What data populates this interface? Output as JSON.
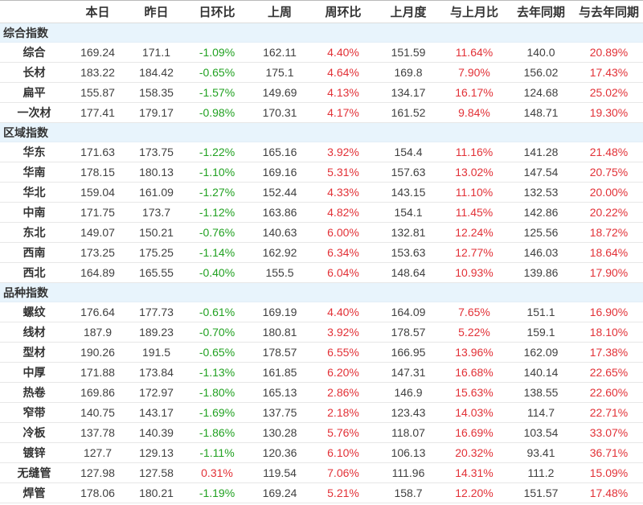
{
  "colors": {
    "up_red": "#e23137",
    "down_green": "#21a121",
    "section_background": "#e8f4fc",
    "header_text": "#333333",
    "value_text": "#404040"
  },
  "chart_data": {
    "type": "table",
    "columns": [
      "",
      "本日",
      "昨日",
      "日环比",
      "上周",
      "周环比",
      "上月度",
      "与上月比",
      "去年同期",
      "与去年同期"
    ],
    "percent_column_indexes": [
      2,
      4,
      6,
      8
    ],
    "groups": [
      {
        "name": "综合指数",
        "rows": [
          {
            "label": "综合",
            "values": [
              "169.24",
              "171.1",
              "-1.09%",
              "162.11",
              "4.40%",
              "151.59",
              "11.64%",
              "140.0",
              "20.89%"
            ]
          },
          {
            "label": "长材",
            "values": [
              "183.22",
              "184.42",
              "-0.65%",
              "175.1",
              "4.64%",
              "169.8",
              "7.90%",
              "156.02",
              "17.43%"
            ]
          },
          {
            "label": "扁平",
            "values": [
              "155.87",
              "158.35",
              "-1.57%",
              "149.69",
              "4.13%",
              "134.17",
              "16.17%",
              "124.68",
              "25.02%"
            ]
          },
          {
            "label": "一次材",
            "values": [
              "177.41",
              "179.17",
              "-0.98%",
              "170.31",
              "4.17%",
              "161.52",
              "9.84%",
              "148.71",
              "19.30%"
            ]
          }
        ]
      },
      {
        "name": "区域指数",
        "rows": [
          {
            "label": "华东",
            "values": [
              "171.63",
              "173.75",
              "-1.22%",
              "165.16",
              "3.92%",
              "154.4",
              "11.16%",
              "141.28",
              "21.48%"
            ]
          },
          {
            "label": "华南",
            "values": [
              "178.15",
              "180.13",
              "-1.10%",
              "169.16",
              "5.31%",
              "157.63",
              "13.02%",
              "147.54",
              "20.75%"
            ]
          },
          {
            "label": "华北",
            "values": [
              "159.04",
              "161.09",
              "-1.27%",
              "152.44",
              "4.33%",
              "143.15",
              "11.10%",
              "132.53",
              "20.00%"
            ]
          },
          {
            "label": "中南",
            "values": [
              "171.75",
              "173.7",
              "-1.12%",
              "163.86",
              "4.82%",
              "154.1",
              "11.45%",
              "142.86",
              "20.22%"
            ]
          },
          {
            "label": "东北",
            "values": [
              "149.07",
              "150.21",
              "-0.76%",
              "140.63",
              "6.00%",
              "132.81",
              "12.24%",
              "125.56",
              "18.72%"
            ]
          },
          {
            "label": "西南",
            "values": [
              "173.25",
              "175.25",
              "-1.14%",
              "162.92",
              "6.34%",
              "153.63",
              "12.77%",
              "146.03",
              "18.64%"
            ]
          },
          {
            "label": "西北",
            "values": [
              "164.89",
              "165.55",
              "-0.40%",
              "155.5",
              "6.04%",
              "148.64",
              "10.93%",
              "139.86",
              "17.90%"
            ]
          }
        ]
      },
      {
        "name": "品种指数",
        "rows": [
          {
            "label": "螺纹",
            "values": [
              "176.64",
              "177.73",
              "-0.61%",
              "169.19",
              "4.40%",
              "164.09",
              "7.65%",
              "151.1",
              "16.90%"
            ]
          },
          {
            "label": "线材",
            "values": [
              "187.9",
              "189.23",
              "-0.70%",
              "180.81",
              "3.92%",
              "178.57",
              "5.22%",
              "159.1",
              "18.10%"
            ]
          },
          {
            "label": "型材",
            "values": [
              "190.26",
              "191.5",
              "-0.65%",
              "178.57",
              "6.55%",
              "166.95",
              "13.96%",
              "162.09",
              "17.38%"
            ]
          },
          {
            "label": "中厚",
            "values": [
              "171.88",
              "173.84",
              "-1.13%",
              "161.85",
              "6.20%",
              "147.31",
              "16.68%",
              "140.14",
              "22.65%"
            ]
          },
          {
            "label": "热卷",
            "values": [
              "169.86",
              "172.97",
              "-1.80%",
              "165.13",
              "2.86%",
              "146.9",
              "15.63%",
              "138.55",
              "22.60%"
            ]
          },
          {
            "label": "窄带",
            "values": [
              "140.75",
              "143.17",
              "-1.69%",
              "137.75",
              "2.18%",
              "123.43",
              "14.03%",
              "114.7",
              "22.71%"
            ]
          },
          {
            "label": "冷板",
            "values": [
              "137.78",
              "140.39",
              "-1.86%",
              "130.28",
              "5.76%",
              "118.07",
              "16.69%",
              "103.54",
              "33.07%"
            ]
          },
          {
            "label": "镀锌",
            "values": [
              "127.7",
              "129.13",
              "-1.11%",
              "120.36",
              "6.10%",
              "106.13",
              "20.32%",
              "93.41",
              "36.71%"
            ]
          },
          {
            "label": "无缝管",
            "values": [
              "127.98",
              "127.58",
              "0.31%",
              "119.54",
              "7.06%",
              "111.96",
              "14.31%",
              "111.2",
              "15.09%"
            ]
          },
          {
            "label": "焊管",
            "values": [
              "178.06",
              "180.21",
              "-1.19%",
              "169.24",
              "5.21%",
              "158.7",
              "12.20%",
              "151.57",
              "17.48%"
            ]
          }
        ]
      }
    ]
  }
}
